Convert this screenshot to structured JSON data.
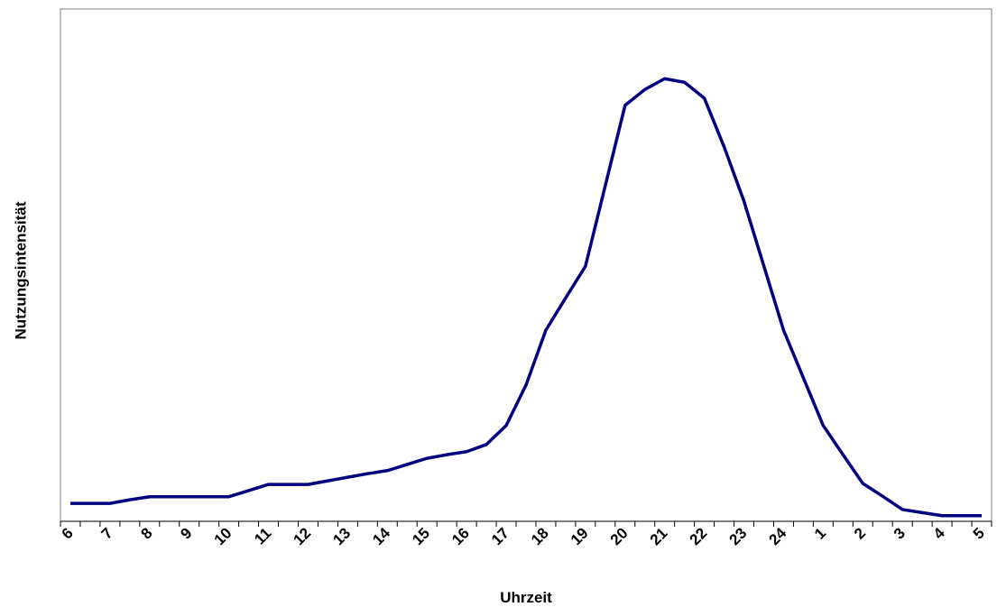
{
  "chart_data": {
    "type": "line",
    "x_label": "Uhrzeit",
    "y_label": "Nutzungsintensität",
    "categories": [
      "6",
      null,
      "7",
      null,
      "8",
      null,
      "9",
      null,
      "10",
      null,
      "11",
      null,
      "12",
      null,
      "13",
      null,
      "14",
      null,
      "15",
      null,
      "16",
      null,
      "17",
      null,
      "18",
      null,
      "19",
      null,
      "20",
      null,
      "21",
      null,
      "22",
      null,
      "23",
      null,
      "24",
      null,
      "1",
      null,
      "2",
      null,
      "3",
      null,
      "4",
      null,
      "5"
    ],
    "values": [
      3.5,
      3.5,
      3.5,
      4.2,
      4.8,
      4.8,
      4.8,
      4.8,
      4.8,
      6.0,
      7.2,
      7.2,
      7.2,
      7.9,
      8.6,
      9.3,
      9.9,
      11.1,
      12.3,
      13.0,
      13.6,
      15.0,
      18.7,
      26.6,
      37.3,
      43.6,
      49.8,
      65.5,
      81.2,
      84.3,
      86.4,
      85.7,
      82.6,
      73.1,
      62.5,
      49.9,
      37.3,
      28.0,
      18.7,
      13.0,
      7.4,
      4.9,
      2.3,
      1.7,
      1.1,
      1.1,
      1.1
    ],
    "color": "#000080",
    "ylim": [
      0,
      100
    ]
  }
}
